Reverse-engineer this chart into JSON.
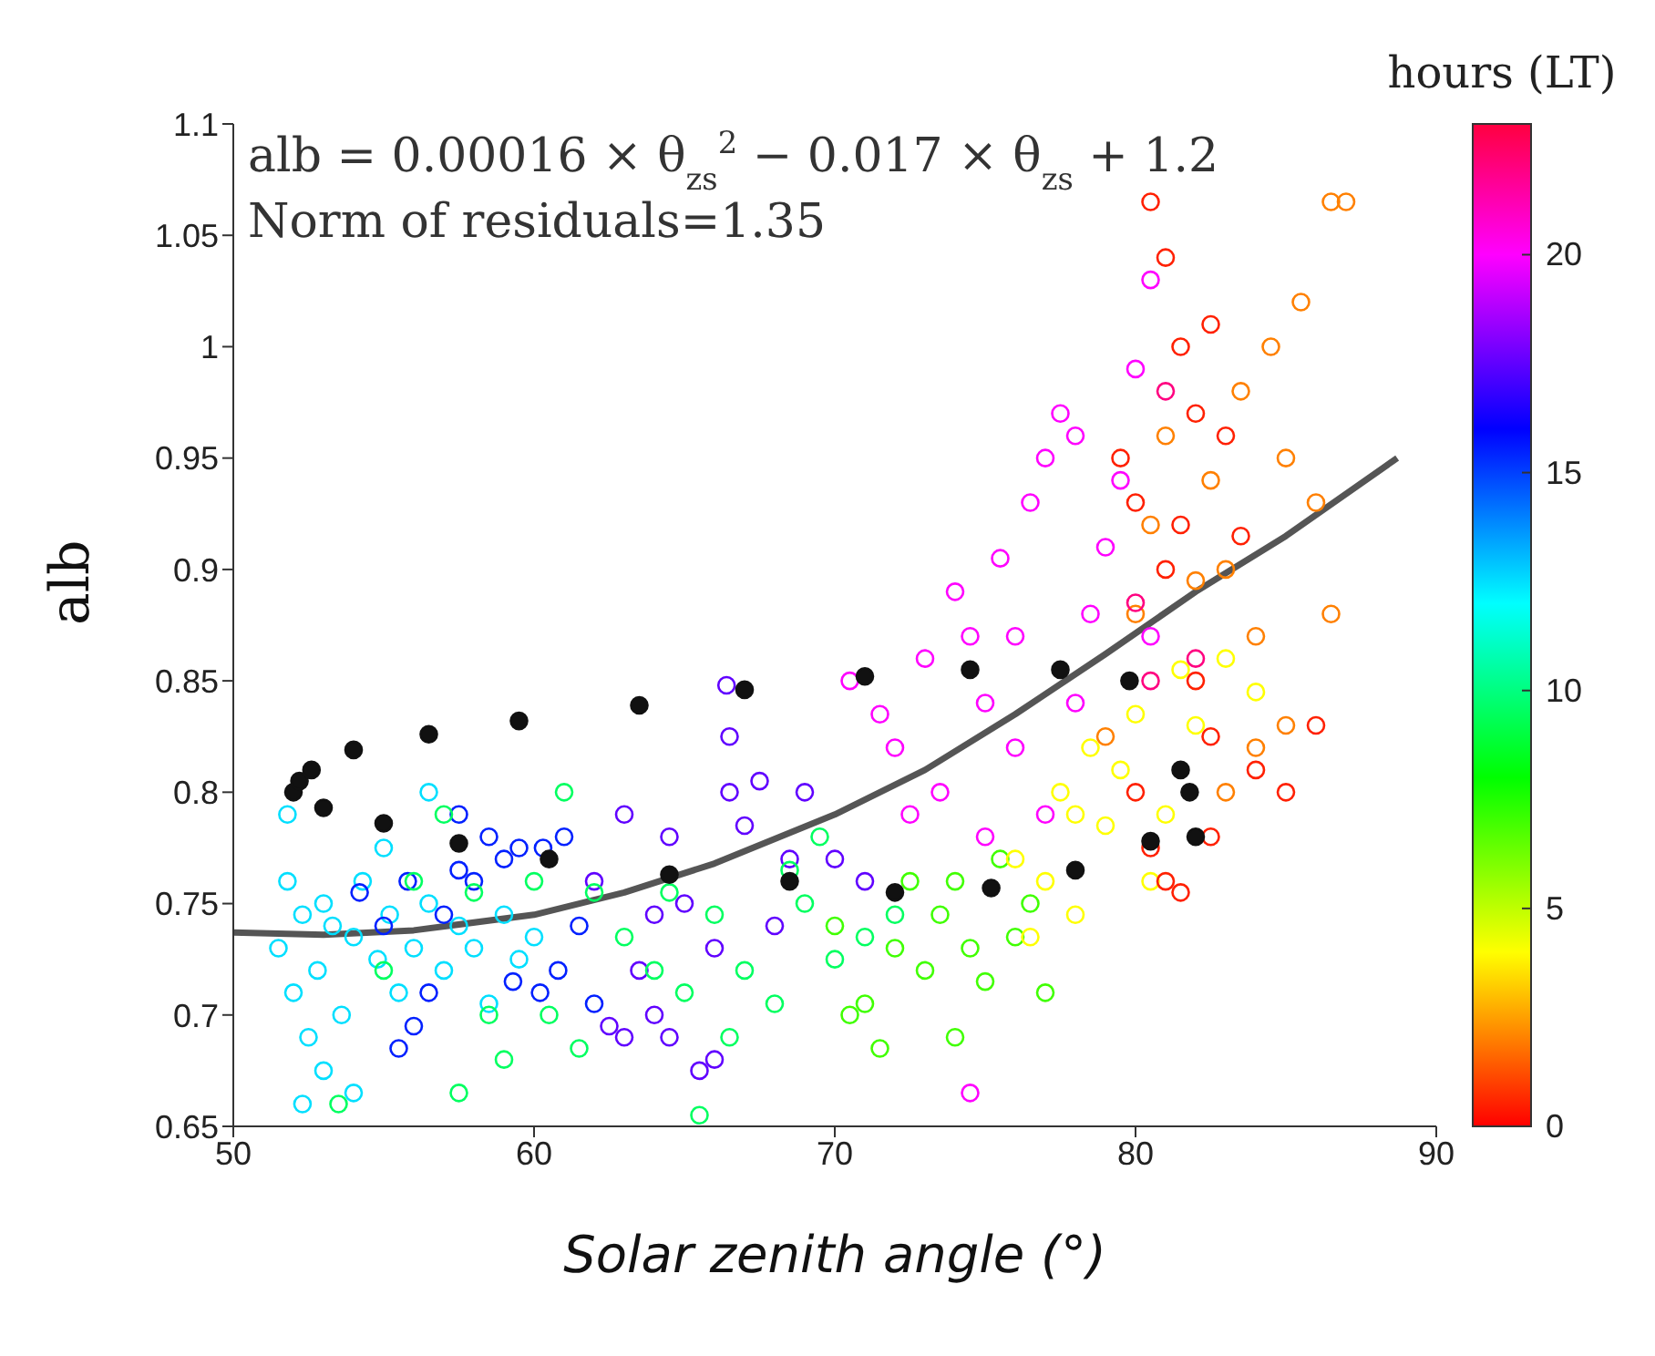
{
  "chart_data": {
    "type": "scatter",
    "xlabel": "Solar zenith angle (°)",
    "ylabel": "alb",
    "clabel": "hours (LT)",
    "marker": "circle",
    "annotations": [
      "alb = 0.00016 × θ$_{zs}$$^{2}$ − 0.017 × θ$_{zs}$ + 1.2",
      "Norm of residuals=1.35"
    ],
    "xlim": [
      50,
      90
    ],
    "xticks": [
      50,
      60,
      70,
      80,
      90
    ],
    "ylim": [
      0.65,
      1.1
    ],
    "yticks": [
      0.65,
      0.7,
      0.75,
      0.8,
      0.85,
      0.9,
      0.95,
      1,
      1.05,
      1.1
    ],
    "clim": [
      0,
      23
    ],
    "cticks": [
      0,
      5,
      10,
      15,
      20
    ],
    "series": [
      {
        "x": [
          51.5,
          51.8,
          52,
          52.3,
          52.5,
          52.8,
          53,
          53.3,
          53.6,
          54,
          54.3,
          54.8,
          55.2,
          55.5,
          56,
          56.5,
          57,
          57.5,
          58,
          58.5,
          59,
          59.5,
          60,
          52.3,
          53,
          54,
          56.5,
          55,
          51.8
        ],
        "values": [
          0.73,
          0.76,
          0.71,
          0.745,
          0.69,
          0.72,
          0.75,
          0.74,
          0.7,
          0.735,
          0.76,
          0.725,
          0.745,
          0.71,
          0.73,
          0.75,
          0.72,
          0.74,
          0.73,
          0.705,
          0.745,
          0.725,
          0.735,
          0.66,
          0.675,
          0.665,
          0.8,
          0.775,
          0.79
        ],
        "cvalues": [
          12.5,
          12.5,
          12.5,
          12.5,
          12.5,
          12.5,
          12.5,
          12.5,
          12.5,
          12.5,
          12.5,
          12.5,
          12.5,
          12.5,
          12.5,
          12.5,
          12.5,
          12.5,
          12.5,
          12.5,
          12.5,
          12.5,
          12.5,
          12.5,
          12.5,
          12.5,
          12.5,
          12.5,
          12.5
        ]
      },
      {
        "x": [
          54.2,
          55,
          55.8,
          57,
          57.5,
          58,
          58.5,
          59,
          59.5,
          60.3,
          61,
          56,
          56.5,
          59.3,
          60.2,
          60.8,
          61.5,
          62,
          57.5,
          55.5
        ],
        "values": [
          0.755,
          0.74,
          0.76,
          0.745,
          0.765,
          0.76,
          0.78,
          0.77,
          0.775,
          0.775,
          0.78,
          0.695,
          0.71,
          0.715,
          0.71,
          0.72,
          0.74,
          0.705,
          0.79,
          0.685
        ],
        "cvalues": [
          15.5,
          15.5,
          15.5,
          15.5,
          15.5,
          15.5,
          15.5,
          15.5,
          15.5,
          15.5,
          15.5,
          15.5,
          15.5,
          15.5,
          15.5,
          15.5,
          15.5,
          15.5,
          15.5,
          15.5
        ]
      },
      {
        "x": [
          62,
          62.5,
          63,
          63.5,
          64,
          64.5,
          65.5,
          66,
          63,
          64,
          64.5,
          65,
          66,
          66.5,
          67,
          67.5,
          68,
          68.5,
          69,
          70,
          71,
          66.5,
          66.4
        ],
        "values": [
          0.76,
          0.695,
          0.69,
          0.72,
          0.7,
          0.69,
          0.675,
          0.68,
          0.79,
          0.745,
          0.78,
          0.75,
          0.73,
          0.8,
          0.785,
          0.805,
          0.74,
          0.77,
          0.8,
          0.77,
          0.76,
          0.825,
          0.848
        ],
        "cvalues": [
          17.5,
          17.5,
          17.5,
          17.5,
          17.5,
          17.5,
          17.5,
          17.5,
          17.5,
          17.5,
          17.5,
          17.5,
          17.5,
          17.5,
          17.5,
          17.5,
          17.5,
          17.5,
          17.5,
          17.5,
          17.5,
          17.5,
          17.5
        ]
      },
      {
        "x": [
          56,
          57,
          58,
          58.5,
          59,
          60,
          60.5,
          61,
          61.5,
          62,
          63,
          64,
          64.5,
          65,
          65.5,
          66,
          66.5,
          67,
          68,
          68.5,
          69,
          69.5,
          70,
          71,
          72,
          55,
          53.5,
          57.5
        ],
        "values": [
          0.76,
          0.79,
          0.755,
          0.7,
          0.68,
          0.76,
          0.7,
          0.8,
          0.685,
          0.755,
          0.735,
          0.72,
          0.755,
          0.71,
          0.655,
          0.745,
          0.69,
          0.72,
          0.705,
          0.765,
          0.75,
          0.78,
          0.725,
          0.735,
          0.745,
          0.72,
          0.66,
          0.665
        ],
        "cvalues": [
          9.5,
          9.5,
          9.5,
          9.5,
          9.5,
          9.5,
          9.5,
          9.5,
          9.5,
          9.5,
          9.5,
          9.5,
          9.5,
          9.5,
          9.5,
          9.5,
          9.5,
          9.5,
          9.5,
          9.5,
          9.5,
          9.5,
          9.5,
          9.5,
          9.5,
          9.5,
          9.5,
          9.5
        ]
      },
      {
        "x": [
          70,
          71,
          72,
          72.5,
          73,
          73.5,
          74,
          74.5,
          75,
          75.5,
          76,
          76.5,
          77,
          70.5,
          71.5,
          74
        ],
        "values": [
          0.74,
          0.705,
          0.73,
          0.76,
          0.72,
          0.745,
          0.76,
          0.73,
          0.715,
          0.77,
          0.735,
          0.75,
          0.71,
          0.7,
          0.685,
          0.69
        ],
        "cvalues": [
          7,
          7,
          7,
          7,
          7,
          7,
          7,
          7,
          7,
          7,
          7,
          7,
          7,
          7,
          7,
          7
        ]
      },
      {
        "x": [
          70.5,
          71.5,
          72,
          72.5,
          73,
          73.5,
          74,
          74.5,
          75,
          75.5,
          76,
          76.5,
          77,
          77.5,
          78,
          78.5,
          78,
          79,
          79.5,
          80,
          80.5,
          80.5,
          76,
          75,
          77,
          74.5
        ],
        "values": [
          0.85,
          0.835,
          0.82,
          0.79,
          0.86,
          0.8,
          0.89,
          0.87,
          0.84,
          0.905,
          0.82,
          0.93,
          0.95,
          0.97,
          0.96,
          0.88,
          0.84,
          0.91,
          0.94,
          0.99,
          1.03,
          0.87,
          0.87,
          0.78,
          0.79,
          0.665
        ],
        "cvalues": [
          20,
          20,
          20,
          20,
          20,
          20,
          20,
          20,
          20,
          20,
          20,
          20,
          20,
          20,
          20,
          20,
          20,
          20,
          20,
          20,
          20,
          20,
          20,
          20,
          20,
          20
        ]
      },
      {
        "x": [
          76,
          77,
          77.5,
          78,
          78.5,
          79,
          79.5,
          80,
          80.5,
          81,
          81.5,
          82,
          83,
          84,
          78,
          76.5
        ],
        "values": [
          0.77,
          0.76,
          0.8,
          0.79,
          0.82,
          0.785,
          0.81,
          0.835,
          0.76,
          0.79,
          0.855,
          0.83,
          0.86,
          0.845,
          0.745,
          0.735
        ],
        "cvalues": [
          4,
          4,
          4,
          4,
          4,
          4,
          4,
          4,
          4,
          4,
          4,
          4,
          4,
          4,
          4,
          4
        ]
      },
      {
        "x": [
          80,
          80.5,
          81,
          82,
          82.5,
          83,
          83.5,
          84,
          84.5,
          85,
          85.5,
          86,
          86.5,
          87,
          85,
          86.5,
          84,
          83,
          79
        ],
        "values": [
          0.88,
          0.92,
          0.96,
          0.895,
          0.94,
          0.9,
          0.98,
          0.87,
          1,
          0.95,
          1.02,
          0.93,
          1.065,
          1.065,
          0.83,
          0.88,
          0.82,
          0.8,
          0.825
        ],
        "cvalues": [
          2,
          2,
          2,
          2,
          2,
          2,
          2,
          2,
          2,
          2,
          2,
          2,
          2,
          2,
          2,
          2,
          2,
          2,
          2
        ]
      },
      {
        "x": [
          79.5,
          80,
          80.5,
          81,
          81,
          81.5,
          81.5,
          82,
          82,
          82.5,
          83,
          80,
          80.5,
          81,
          82.5,
          84,
          85,
          86,
          83.5,
          81.5,
          82.5
        ],
        "values": [
          0.95,
          0.93,
          1.065,
          1.04,
          0.9,
          1,
          0.92,
          0.97,
          0.85,
          1.01,
          0.96,
          0.8,
          0.775,
          0.76,
          0.78,
          0.81,
          0.8,
          0.83,
          0.915,
          0.755,
          0.825
        ],
        "cvalues": [
          0.5,
          0.5,
          0.5,
          0.5,
          0.5,
          0.5,
          0.5,
          0.5,
          0.5,
          0.5,
          0.5,
          0.5,
          0.5,
          0.5,
          0.5,
          0.5,
          0.5,
          0.5,
          0.5,
          0.5,
          0.5
        ]
      },
      {
        "x": [
          80.5,
          81,
          82,
          80
        ],
        "values": [
          0.85,
          0.98,
          0.86,
          0.885
        ],
        "cvalues": [
          22,
          22,
          22,
          22
        ]
      },
      {
        "color": "#111111",
        "x": [
          52,
          52.2,
          52.6,
          53,
          54,
          55,
          56.5,
          57.5,
          59.5,
          60.5,
          63.5,
          67,
          64.5,
          68.5,
          71,
          72,
          74.5,
          75.2,
          77.5,
          78,
          79.8,
          81.5,
          81.8,
          82,
          80.5
        ],
        "values": [
          0.8,
          0.805,
          0.81,
          0.793,
          0.819,
          0.786,
          0.826,
          0.777,
          0.832,
          0.77,
          0.839,
          0.846,
          0.763,
          0.76,
          0.852,
          0.755,
          0.855,
          0.757,
          0.855,
          0.765,
          0.85,
          0.81,
          0.8,
          0.78,
          0.778
        ]
      },
      {
        "type": "line",
        "marker": "none",
        "color": "#555555",
        "x": [
          50,
          53,
          56,
          60,
          63,
          66,
          70,
          73,
          76,
          79,
          82,
          85,
          88.7
        ],
        "values": [
          0.737,
          0.736,
          0.738,
          0.745,
          0.755,
          0.768,
          0.79,
          0.81,
          0.835,
          0.862,
          0.89,
          0.915,
          0.95
        ]
      }
    ]
  }
}
